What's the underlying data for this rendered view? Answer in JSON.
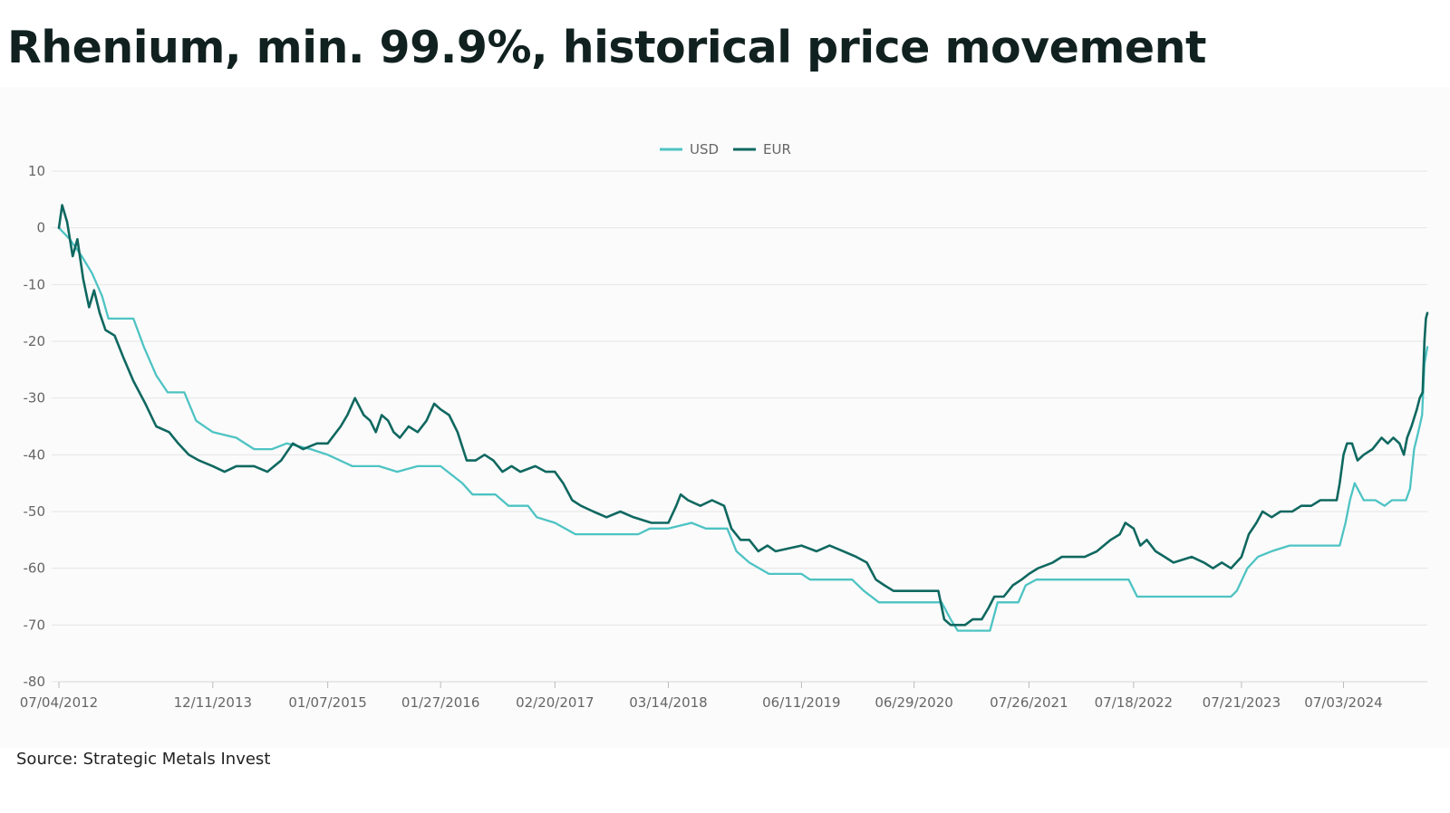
{
  "page": {
    "title": "Rhenium, min. 99.9%, historical price movement",
    "source": "Source: Strategic Metals Invest"
  },
  "chart_data": {
    "type": "line",
    "title": "",
    "xlabel": "",
    "ylabel": "",
    "ylim": [
      -80,
      10
    ],
    "yticks": [
      10,
      0,
      -10,
      -20,
      -30,
      -40,
      -50,
      -60,
      -70,
      -80
    ],
    "xlim": [
      "07/04/2012",
      "04/15/2025"
    ],
    "xticks": [
      "07/04/2012",
      "12/11/2013",
      "01/07/2015",
      "01/27/2016",
      "02/20/2017",
      "03/14/2018",
      "06/11/2019",
      "06/29/2020",
      "07/26/2021",
      "07/18/2022",
      "07/21/2023",
      "07/03/2024"
    ],
    "grid": true,
    "legend": "top-center",
    "series": [
      {
        "name": "USD",
        "color": "#4ec3c3",
        "points": [
          [
            "07/04/2012",
            0
          ],
          [
            "08/10/2012",
            -2
          ],
          [
            "09/20/2012",
            -5
          ],
          [
            "10/25/2012",
            -8
          ],
          [
            "11/28/2012",
            -12
          ],
          [
            "12/20/2012",
            -16
          ],
          [
            "03/15/2013",
            -16
          ],
          [
            "04/20/2013",
            -21
          ],
          [
            "06/01/2013",
            -26
          ],
          [
            "07/10/2013",
            -29
          ],
          [
            "09/05/2013",
            -29
          ],
          [
            "10/15/2013",
            -34
          ],
          [
            "12/11/2013",
            -36
          ],
          [
            "03/01/2014",
            -37
          ],
          [
            "05/01/2014",
            -39
          ],
          [
            "07/01/2014",
            -39
          ],
          [
            "08/20/2014",
            -38
          ],
          [
            "11/10/2014",
            -39
          ],
          [
            "01/07/2015",
            -40
          ],
          [
            "04/01/2015",
            -42
          ],
          [
            "07/01/2015",
            -42
          ],
          [
            "09/01/2015",
            -43
          ],
          [
            "11/10/2015",
            -42
          ],
          [
            "01/27/2016",
            -42
          ],
          [
            "04/10/2016",
            -45
          ],
          [
            "05/15/2016",
            -47
          ],
          [
            "08/01/2016",
            -47
          ],
          [
            "09/15/2016",
            -49
          ],
          [
            "11/20/2016",
            -49
          ],
          [
            "12/20/2016",
            -51
          ],
          [
            "02/20/2017",
            -52
          ],
          [
            "05/01/2017",
            -54
          ],
          [
            "12/01/2017",
            -54
          ],
          [
            "01/10/2018",
            -53
          ],
          [
            "03/14/2018",
            -53
          ],
          [
            "06/01/2018",
            -52
          ],
          [
            "07/20/2018",
            -53
          ],
          [
            "10/01/2018",
            -53
          ],
          [
            "11/01/2018",
            -57
          ],
          [
            "12/15/2018",
            -59
          ],
          [
            "02/20/2019",
            -61
          ],
          [
            "06/11/2019",
            -61
          ],
          [
            "07/10/2019",
            -62
          ],
          [
            "12/01/2019",
            -62
          ],
          [
            "01/10/2020",
            -64
          ],
          [
            "03/01/2020",
            -66
          ],
          [
            "06/29/2020",
            -66
          ],
          [
            "10/01/2020",
            -66
          ],
          [
            "11/01/2020",
            -69
          ],
          [
            "11/25/2020",
            -71
          ],
          [
            "03/15/2021",
            -71
          ],
          [
            "04/10/2021",
            -66
          ],
          [
            "06/20/2021",
            -66
          ],
          [
            "07/15/2021",
            -63
          ],
          [
            "08/20/2021",
            -62
          ],
          [
            "07/01/2022",
            -62
          ],
          [
            "07/30/2022",
            -65
          ],
          [
            "06/15/2023",
            -65
          ],
          [
            "07/05/2023",
            -64
          ],
          [
            "08/10/2023",
            -60
          ],
          [
            "09/15/2023",
            -58
          ],
          [
            "11/01/2023",
            -57
          ],
          [
            "01/01/2024",
            -56
          ],
          [
            "05/10/2024",
            -56
          ],
          [
            "06/20/2024",
            -56
          ],
          [
            "07/10/2024",
            -52
          ],
          [
            "07/25/2024",
            -48
          ],
          [
            "08/10/2024",
            -45
          ],
          [
            "09/10/2024",
            -48
          ],
          [
            "10/20/2024",
            -48
          ],
          [
            "11/20/2024",
            -49
          ],
          [
            "12/15/2024",
            -48
          ],
          [
            "02/01/2025",
            -48
          ],
          [
            "02/15/2025",
            -46
          ],
          [
            "03/01/2025",
            -39
          ],
          [
            "03/15/2025",
            -36
          ],
          [
            "03/28/2025",
            -33
          ],
          [
            "04/05/2025",
            -24
          ],
          [
            "04/15/2025",
            -21
          ]
        ]
      },
      {
        "name": "EUR",
        "color": "#0f6860",
        "points": [
          [
            "07/04/2012",
            0
          ],
          [
            "07/15/2012",
            4
          ],
          [
            "08/01/2012",
            1
          ],
          [
            "08/20/2012",
            -5
          ],
          [
            "09/05/2012",
            -2
          ],
          [
            "09/25/2012",
            -9
          ],
          [
            "10/15/2012",
            -14
          ],
          [
            "11/01/2012",
            -11
          ],
          [
            "11/20/2012",
            -15
          ],
          [
            "12/10/2012",
            -18
          ],
          [
            "01/10/2013",
            -19
          ],
          [
            "02/10/2013",
            -23
          ],
          [
            "03/15/2013",
            -27
          ],
          [
            "04/25/2013",
            -31
          ],
          [
            "06/01/2013",
            -35
          ],
          [
            "07/15/2013",
            -36
          ],
          [
            "08/15/2013",
            -38
          ],
          [
            "09/20/2013",
            -40
          ],
          [
            "10/25/2013",
            -41
          ],
          [
            "12/11/2013",
            -42
          ],
          [
            "01/20/2014",
            -43
          ],
          [
            "03/01/2014",
            -42
          ],
          [
            "05/01/2014",
            -42
          ],
          [
            "06/15/2014",
            -43
          ],
          [
            "08/01/2014",
            -41
          ],
          [
            "09/10/2014",
            -38
          ],
          [
            "10/15/2014",
            -39
          ],
          [
            "12/01/2014",
            -38
          ],
          [
            "01/07/2015",
            -38
          ],
          [
            "02/20/2015",
            -35
          ],
          [
            "03/15/2015",
            -33
          ],
          [
            "04/10/2015",
            -30
          ],
          [
            "05/10/2015",
            -33
          ],
          [
            "06/01/2015",
            -34
          ],
          [
            "06/20/2015",
            -36
          ],
          [
            "07/10/2015",
            -33
          ],
          [
            "08/01/2015",
            -34
          ],
          [
            "08/20/2015",
            -36
          ],
          [
            "09/10/2015",
            -37
          ],
          [
            "10/10/2015",
            -35
          ],
          [
            "11/10/2015",
            -36
          ],
          [
            "12/10/2015",
            -34
          ],
          [
            "01/05/2016",
            -31
          ],
          [
            "01/27/2016",
            -32
          ],
          [
            "02/25/2016",
            -33
          ],
          [
            "03/25/2016",
            -36
          ],
          [
            "04/25/2016",
            -41
          ],
          [
            "05/25/2016",
            -41
          ],
          [
            "06/25/2016",
            -40
          ],
          [
            "07/25/2016",
            -41
          ],
          [
            "08/25/2016",
            -43
          ],
          [
            "09/25/2016",
            -42
          ],
          [
            "10/25/2016",
            -43
          ],
          [
            "12/15/2016",
            -42
          ],
          [
            "01/20/2017",
            -43
          ],
          [
            "02/20/2017",
            -43
          ],
          [
            "03/20/2017",
            -45
          ],
          [
            "04/20/2017",
            -48
          ],
          [
            "05/20/2017",
            -49
          ],
          [
            "07/01/2017",
            -50
          ],
          [
            "08/15/2017",
            -51
          ],
          [
            "10/01/2017",
            -50
          ],
          [
            "11/15/2017",
            -51
          ],
          [
            "01/15/2018",
            -52
          ],
          [
            "03/14/2018",
            -52
          ],
          [
            "04/10/2018",
            -49
          ],
          [
            "04/25/2018",
            -47
          ],
          [
            "05/20/2018",
            -48
          ],
          [
            "07/01/2018",
            -49
          ],
          [
            "08/10/2018",
            -48
          ],
          [
            "09/20/2018",
            -49
          ],
          [
            "10/15/2018",
            -53
          ],
          [
            "11/15/2018",
            -55
          ],
          [
            "12/15/2018",
            -55
          ],
          [
            "01/15/2019",
            -57
          ],
          [
            "02/15/2019",
            -56
          ],
          [
            "03/15/2019",
            -57
          ],
          [
            "06/11/2019",
            -56
          ],
          [
            "08/01/2019",
            -57
          ],
          [
            "09/15/2019",
            -56
          ],
          [
            "11/01/2019",
            -57
          ],
          [
            "12/15/2019",
            -58
          ],
          [
            "01/20/2020",
            -59
          ],
          [
            "02/20/2020",
            -62
          ],
          [
            "03/20/2020",
            -63
          ],
          [
            "04/20/2020",
            -64
          ],
          [
            "06/29/2020",
            -64
          ],
          [
            "09/20/2020",
            -64
          ],
          [
            "10/10/2020",
            -69
          ],
          [
            "11/01/2020",
            -70
          ],
          [
            "12/20/2020",
            -70
          ],
          [
            "01/15/2021",
            -69
          ],
          [
            "02/15/2021",
            -69
          ],
          [
            "03/10/2021",
            -67
          ],
          [
            "03/30/2021",
            -65
          ],
          [
            "05/01/2021",
            -65
          ],
          [
            "06/01/2021",
            -63
          ],
          [
            "07/01/2021",
            -62
          ],
          [
            "07/26/2021",
            -61
          ],
          [
            "08/26/2021",
            -60
          ],
          [
            "10/15/2021",
            -59
          ],
          [
            "11/15/2021",
            -58
          ],
          [
            "02/01/2022",
            -58
          ],
          [
            "03/15/2022",
            -57
          ],
          [
            "05/01/2022",
            -55
          ],
          [
            "06/01/2022",
            -54
          ],
          [
            "06/20/2022",
            -52
          ],
          [
            "07/18/2022",
            -53
          ],
          [
            "08/10/2022",
            -56
          ],
          [
            "09/01/2022",
            -55
          ],
          [
            "10/01/2022",
            -57
          ],
          [
            "11/01/2022",
            -58
          ],
          [
            "12/01/2022",
            -59
          ],
          [
            "02/01/2023",
            -58
          ],
          [
            "03/15/2023",
            -59
          ],
          [
            "04/15/2023",
            -60
          ],
          [
            "05/15/2023",
            -59
          ],
          [
            "06/15/2023",
            -60
          ],
          [
            "07/21/2023",
            -58
          ],
          [
            "08/15/2023",
            -54
          ],
          [
            "09/10/2023",
            -52
          ],
          [
            "10/01/2023",
            -50
          ],
          [
            "11/01/2023",
            -51
          ],
          [
            "12/01/2023",
            -50
          ],
          [
            "01/10/2024",
            -50
          ],
          [
            "02/10/2024",
            -49
          ],
          [
            "03/15/2024",
            -49
          ],
          [
            "04/15/2024",
            -48
          ],
          [
            "05/20/2024",
            -48
          ],
          [
            "06/10/2024",
            -48
          ],
          [
            "06/20/2024",
            -45
          ],
          [
            "07/03/2024",
            -40
          ],
          [
            "07/15/2024",
            -38
          ],
          [
            "08/01/2024",
            -38
          ],
          [
            "08/20/2024",
            -41
          ],
          [
            "09/10/2024",
            -40
          ],
          [
            "10/10/2024",
            -39
          ],
          [
            "11/10/2024",
            -37
          ],
          [
            "12/01/2024",
            -38
          ],
          [
            "12/20/2024",
            -37
          ],
          [
            "01/10/2025",
            -38
          ],
          [
            "01/25/2025",
            -40
          ],
          [
            "02/05/2025",
            -37
          ],
          [
            "02/20/2025",
            -35
          ],
          [
            "03/10/2025",
            -32
          ],
          [
            "03/20/2025",
            -30
          ],
          [
            "03/30/2025",
            -29
          ],
          [
            "04/05/2025",
            -20
          ],
          [
            "04/10/2025",
            -16
          ],
          [
            "04/15/2025",
            -15
          ]
        ]
      }
    ]
  }
}
